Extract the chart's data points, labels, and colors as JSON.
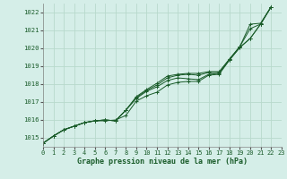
{
  "xlabel": "Graphe pression niveau de la mer (hPa)",
  "ylim": [
    1014.5,
    1022.5
  ],
  "xlim": [
    0,
    23
  ],
  "yticks": [
    1015,
    1016,
    1017,
    1018,
    1019,
    1020,
    1021,
    1022
  ],
  "xticks": [
    0,
    1,
    2,
    3,
    4,
    5,
    6,
    7,
    8,
    9,
    10,
    11,
    12,
    13,
    14,
    15,
    16,
    17,
    18,
    19,
    20,
    21,
    22,
    23
  ],
  "background_color": "#d5eee8",
  "grid_color": "#b8d9cc",
  "line_color": "#1a5c2a",
  "series": [
    [
      1014.7,
      1015.1,
      1015.45,
      1015.65,
      1015.85,
      1015.95,
      1015.95,
      1016.0,
      1016.25,
      1017.05,
      1017.35,
      1017.55,
      1017.95,
      1018.1,
      1018.15,
      1018.15,
      1018.5,
      1018.55,
      1019.35,
      1020.05,
      1020.55,
      1021.35,
      1022.3
    ],
    [
      1014.7,
      1015.1,
      1015.45,
      1015.65,
      1015.85,
      1015.95,
      1016.0,
      1015.95,
      1016.55,
      1017.2,
      1017.6,
      1017.85,
      1018.2,
      1018.35,
      1018.3,
      1018.25,
      1018.55,
      1018.6,
      1019.35,
      1020.05,
      1020.55,
      1021.35,
      1022.3
    ],
    [
      1014.7,
      1015.1,
      1015.45,
      1015.65,
      1015.85,
      1015.95,
      1016.0,
      1015.95,
      1016.55,
      1017.25,
      1017.65,
      1017.95,
      1018.35,
      1018.5,
      1018.55,
      1018.5,
      1018.65,
      1018.65,
      1019.4,
      1020.1,
      1021.1,
      1021.35,
      1022.3
    ],
    [
      1014.7,
      1015.1,
      1015.45,
      1015.65,
      1015.85,
      1015.95,
      1016.0,
      1015.95,
      1016.55,
      1017.3,
      1017.7,
      1018.05,
      1018.45,
      1018.55,
      1018.6,
      1018.6,
      1018.7,
      1018.7,
      1019.4,
      1020.1,
      1021.35,
      1021.4,
      1022.3
    ]
  ],
  "x_hours": [
    0,
    1,
    2,
    3,
    4,
    5,
    6,
    7,
    8,
    9,
    10,
    11,
    12,
    13,
    14,
    15,
    16,
    17,
    18,
    19,
    20,
    21,
    22
  ]
}
